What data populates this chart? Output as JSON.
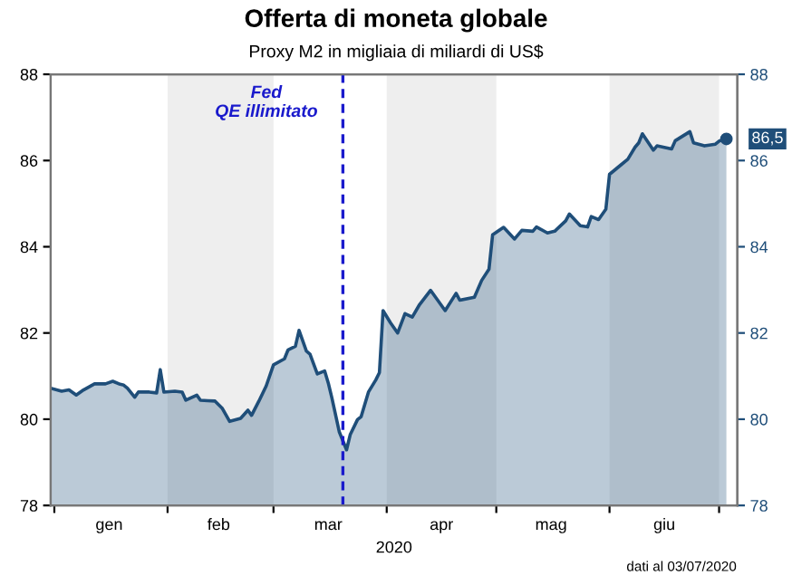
{
  "chart_data": {
    "type": "area",
    "title": "Offerta di moneta globale",
    "subtitle": "Proxy M2 in migliaia di miliardi di US$",
    "xlabel": "2020",
    "x": [
      "2019-12-31",
      "2020-01-03",
      "2020-01-05",
      "2020-01-07",
      "2020-01-09",
      "2020-01-12",
      "2020-01-15",
      "2020-01-17",
      "2020-01-19",
      "2020-01-20",
      "2020-01-21",
      "2020-01-23",
      "2020-01-24",
      "2020-01-27",
      "2020-01-29",
      "2020-01-30",
      "2020-01-31",
      "2020-02-03",
      "2020-02-05",
      "2020-02-06",
      "2020-02-09",
      "2020-02-10",
      "2020-02-12",
      "2020-02-14",
      "2020-02-16",
      "2020-02-18",
      "2020-02-21",
      "2020-02-23",
      "2020-02-24",
      "2020-02-26",
      "2020-02-28",
      "2020-03-01",
      "2020-03-04",
      "2020-03-05",
      "2020-03-07",
      "2020-03-08",
      "2020-03-10",
      "2020-03-11",
      "2020-03-13",
      "2020-03-15",
      "2020-03-16",
      "2020-03-17",
      "2020-03-19",
      "2020-03-21",
      "2020-03-22",
      "2020-03-24",
      "2020-03-25",
      "2020-03-27",
      "2020-03-29",
      "2020-03-30",
      "2020-03-31",
      "2020-04-02",
      "2020-04-04",
      "2020-04-06",
      "2020-04-08",
      "2020-04-10",
      "2020-04-13",
      "2020-04-17",
      "2020-04-20",
      "2020-04-21",
      "2020-04-25",
      "2020-04-27",
      "2020-04-29",
      "2020-04-30",
      "2020-05-03",
      "2020-05-06",
      "2020-05-08",
      "2020-05-11",
      "2020-05-12",
      "2020-05-15",
      "2020-05-17",
      "2020-05-20",
      "2020-05-21",
      "2020-05-24",
      "2020-05-26",
      "2020-05-27",
      "2020-05-29",
      "2020-05-31",
      "2020-06-01",
      "2020-06-04",
      "2020-06-06",
      "2020-06-08",
      "2020-06-09",
      "2020-06-10",
      "2020-06-13",
      "2020-06-14",
      "2020-06-18",
      "2020-06-19",
      "2020-06-23",
      "2020-06-24",
      "2020-06-27",
      "2020-06-30",
      "2020-07-01",
      "2020-07-03"
    ],
    "series": [
      {
        "color": "#1f4e79",
        "values": [
          80.72,
          80.65,
          80.68,
          80.56,
          80.68,
          80.82,
          80.82,
          80.88,
          80.81,
          80.79,
          80.72,
          80.51,
          80.63,
          80.63,
          80.61,
          81.15,
          80.63,
          80.65,
          80.63,
          80.44,
          80.56,
          80.44,
          80.43,
          80.42,
          80.25,
          79.95,
          80.02,
          80.21,
          80.09,
          80.42,
          80.77,
          81.26,
          81.4,
          81.61,
          81.69,
          82.06,
          81.58,
          81.51,
          81.05,
          81.12,
          80.84,
          80.49,
          79.71,
          79.29,
          79.64,
          79.99,
          80.06,
          80.63,
          80.91,
          81.08,
          82.52,
          82.24,
          82.0,
          82.45,
          82.37,
          82.66,
          82.99,
          82.52,
          82.92,
          82.76,
          82.83,
          83.22,
          83.48,
          84.28,
          84.45,
          84.18,
          84.38,
          84.36,
          84.46,
          84.32,
          84.36,
          84.6,
          84.76,
          84.49,
          84.46,
          84.7,
          84.63,
          84.87,
          85.68,
          85.89,
          86.03,
          86.31,
          86.41,
          86.62,
          86.24,
          86.34,
          86.27,
          86.46,
          86.67,
          86.41,
          86.34,
          86.38,
          86.45,
          86.5
        ]
      }
    ],
    "xlim": [
      "2019-12-31",
      "2020-07-06"
    ],
    "xticks": [
      {
        "value": "2020-01-01",
        "label": null
      },
      {
        "value": "2020-01-16",
        "label": "gen"
      },
      {
        "value": "2020-02-01",
        "label": null
      },
      {
        "value": "2020-02-15",
        "label": "feb"
      },
      {
        "value": "2020-03-01",
        "label": null
      },
      {
        "value": "2020-03-16",
        "label": "mar"
      },
      {
        "value": "2020-04-01",
        "label": null
      },
      {
        "value": "2020-04-16",
        "label": "apr"
      },
      {
        "value": "2020-05-01",
        "label": null
      },
      {
        "value": "2020-05-16",
        "label": "mag"
      },
      {
        "value": "2020-06-01",
        "label": null
      },
      {
        "value": "2020-06-16",
        "label": "giu"
      },
      {
        "value": "2020-07-01",
        "label": null
      }
    ],
    "ylim": [
      78,
      88
    ],
    "yticks": [
      78,
      80,
      82,
      84,
      86,
      88
    ],
    "y2lim": [
      78,
      88
    ],
    "y2ticks": [
      78,
      80,
      82,
      84,
      86,
      88
    ],
    "ref_lines": [
      {
        "axis": "x",
        "value": "2020-03-20",
        "label": "Fed\nQE illimitato",
        "color": "#1a1acc",
        "line_style": "dashed"
      }
    ],
    "bands": [
      {
        "axis": "x",
        "from": "2020-02-01",
        "to": "2020-03-01",
        "color": "#eeeeee"
      },
      {
        "axis": "x",
        "from": "2020-04-01",
        "to": "2020-05-01",
        "color": "#eeeeee"
      },
      {
        "axis": "x",
        "from": "2020-06-01",
        "to": "2020-07-01",
        "color": "#eeeeee"
      }
    ],
    "annotations": [
      {
        "text": "86,5",
        "x": "2020-07-03",
        "y": 86.5
      },
      "dati al 03/07/2020"
    ],
    "grid": false
  }
}
